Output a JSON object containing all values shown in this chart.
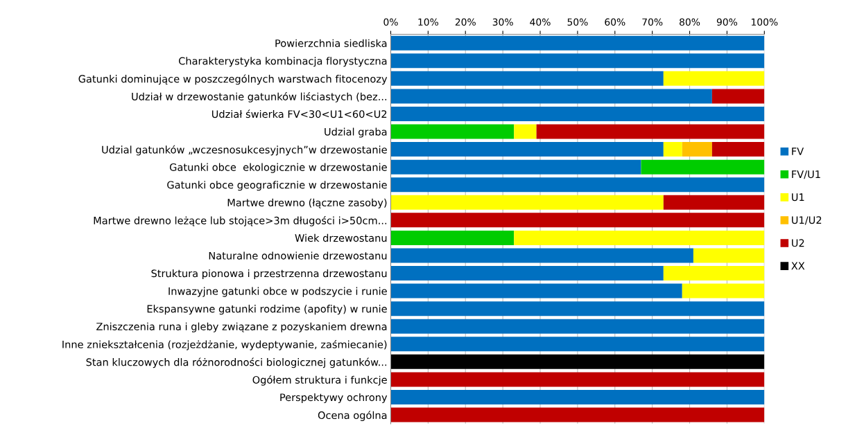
{
  "chart_data": {
    "type": "bar",
    "orientation": "horizontal",
    "stacked": true,
    "categories": [
      "Powierzchnia siedliska",
      "Charakterystyka kombinacja florystyczna",
      "Gatunki dominujące w poszczególnych warstwach fitocenozy",
      "Udział w drzewostanie gatunków liściastych (bez...",
      "Udział świerka FV<30<U1<60<U2",
      "Udzial graba",
      "Udzial gatunków „wczesnosukcesyjnych”w drzewostanie",
      "Gatunki obce  ekologicznie w drzewostanie",
      "Gatunki obce geograficznie w drzewostanie",
      "Martwe drewno (łączne zasoby)",
      "Martwe drewno leżące lub stojące>3m długości i>50cm...",
      "Wiek drzewostanu",
      "Naturalne odnowienie drzewostanu",
      "Struktura pionowa i przestrzenna drzewostanu",
      "Inwazyjne gatunki obce w podszycie i runie",
      "Ekspansywne gatunki rodzime (apofity) w runie",
      "Zniszczenia runa i gleby związane z pozyskaniem drewna",
      "Inne zniekształcenia (rozjeżdżanie, wydeptywanie, zaśmiecanie)",
      "Stan kluczowych dla różnorodności biologicznej gatunków...",
      "Ogółem struktura i funkcje",
      "Perspektywy ochrony",
      "Ocena ogólna"
    ],
    "series": [
      {
        "name": "FV",
        "color": "#0070c0",
        "values": [
          100,
          100,
          73,
          86,
          100,
          0,
          73,
          67,
          100,
          0,
          0,
          0,
          81,
          73,
          78,
          100,
          100,
          100,
          0,
          0,
          100,
          0
        ]
      },
      {
        "name": "FV/U1",
        "color": "#00cc00",
        "values": [
          0,
          0,
          0,
          0,
          0,
          33,
          0,
          33,
          0,
          0,
          0,
          33,
          0,
          0,
          0,
          0,
          0,
          0,
          0,
          0,
          0,
          0
        ]
      },
      {
        "name": "U1",
        "color": "#ffff00",
        "values": [
          0,
          0,
          27,
          0,
          0,
          6,
          5,
          0,
          0,
          73,
          0,
          67,
          19,
          27,
          22,
          0,
          0,
          0,
          0,
          0,
          0,
          0
        ]
      },
      {
        "name": "U1/U2",
        "color": "#ffc000",
        "values": [
          0,
          0,
          0,
          0,
          0,
          0,
          8,
          0,
          0,
          0,
          0,
          0,
          0,
          0,
          0,
          0,
          0,
          0,
          0,
          0,
          0,
          0
        ]
      },
      {
        "name": "U2",
        "color": "#c00000",
        "values": [
          0,
          0,
          0,
          14,
          0,
          61,
          14,
          0,
          0,
          27,
          100,
          0,
          0,
          0,
          0,
          0,
          0,
          0,
          0,
          100,
          0,
          100
        ]
      },
      {
        "name": "XX",
        "color": "#000000",
        "values": [
          0,
          0,
          0,
          0,
          0,
          0,
          0,
          0,
          0,
          0,
          0,
          0,
          0,
          0,
          0,
          0,
          0,
          0,
          100,
          0,
          0,
          0
        ]
      }
    ],
    "xlim": [
      0,
      100
    ],
    "xticks": [
      {
        "value": 0,
        "label": "0%"
      },
      {
        "value": 10,
        "label": "10%"
      },
      {
        "value": 20,
        "label": "20%"
      },
      {
        "value": 30,
        "label": "30%"
      },
      {
        "value": 40,
        "label": "40%"
      },
      {
        "value": 50,
        "label": "50%"
      },
      {
        "value": 60,
        "label": "60%"
      },
      {
        "value": 70,
        "label": "70%"
      },
      {
        "value": 80,
        "label": "80%"
      },
      {
        "value": 90,
        "label": "90%"
      },
      {
        "value": 100,
        "label": "100%"
      }
    ],
    "grid": "x",
    "legend": "right"
  }
}
